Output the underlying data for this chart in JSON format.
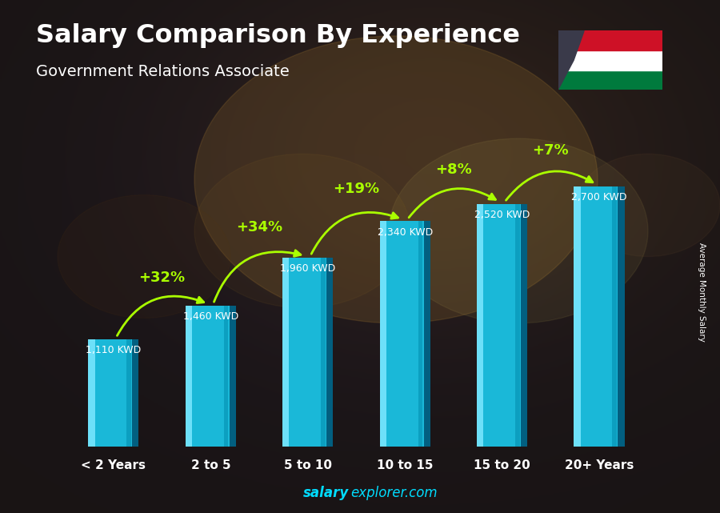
{
  "title": "Salary Comparison By Experience",
  "subtitle": "Government Relations Associate",
  "categories": [
    "< 2 Years",
    "2 to 5",
    "5 to 10",
    "10 to 15",
    "15 to 20",
    "20+ Years"
  ],
  "values": [
    1110,
    1460,
    1960,
    2340,
    2520,
    2700
  ],
  "labels": [
    "1,110 KWD",
    "1,460 KWD",
    "1,960 KWD",
    "2,340 KWD",
    "2,520 KWD",
    "2,700 KWD"
  ],
  "pct_labels": [
    "+32%",
    "+34%",
    "+19%",
    "+8%",
    "+7%"
  ],
  "bar_color_main": "#1ab8d8",
  "bar_color_light": "#7de8ff",
  "bar_color_dark": "#0088aa",
  "bar_color_darker": "#005577",
  "bg_dark": "#1a1510",
  "title_color": "#ffffff",
  "subtitle_color": "#ffffff",
  "label_color": "#ffffff",
  "pct_color": "#aaff00",
  "ylabel_text": "Average Monthly Salary",
  "watermark_bold": "salary",
  "watermark_normal": "explorer.com",
  "ymax": 3200,
  "bar_width": 0.52,
  "flag_colors": [
    "#007A3D",
    "#FFFFFF",
    "#CE1126"
  ],
  "flag_trap_color": "#3a3a4a"
}
